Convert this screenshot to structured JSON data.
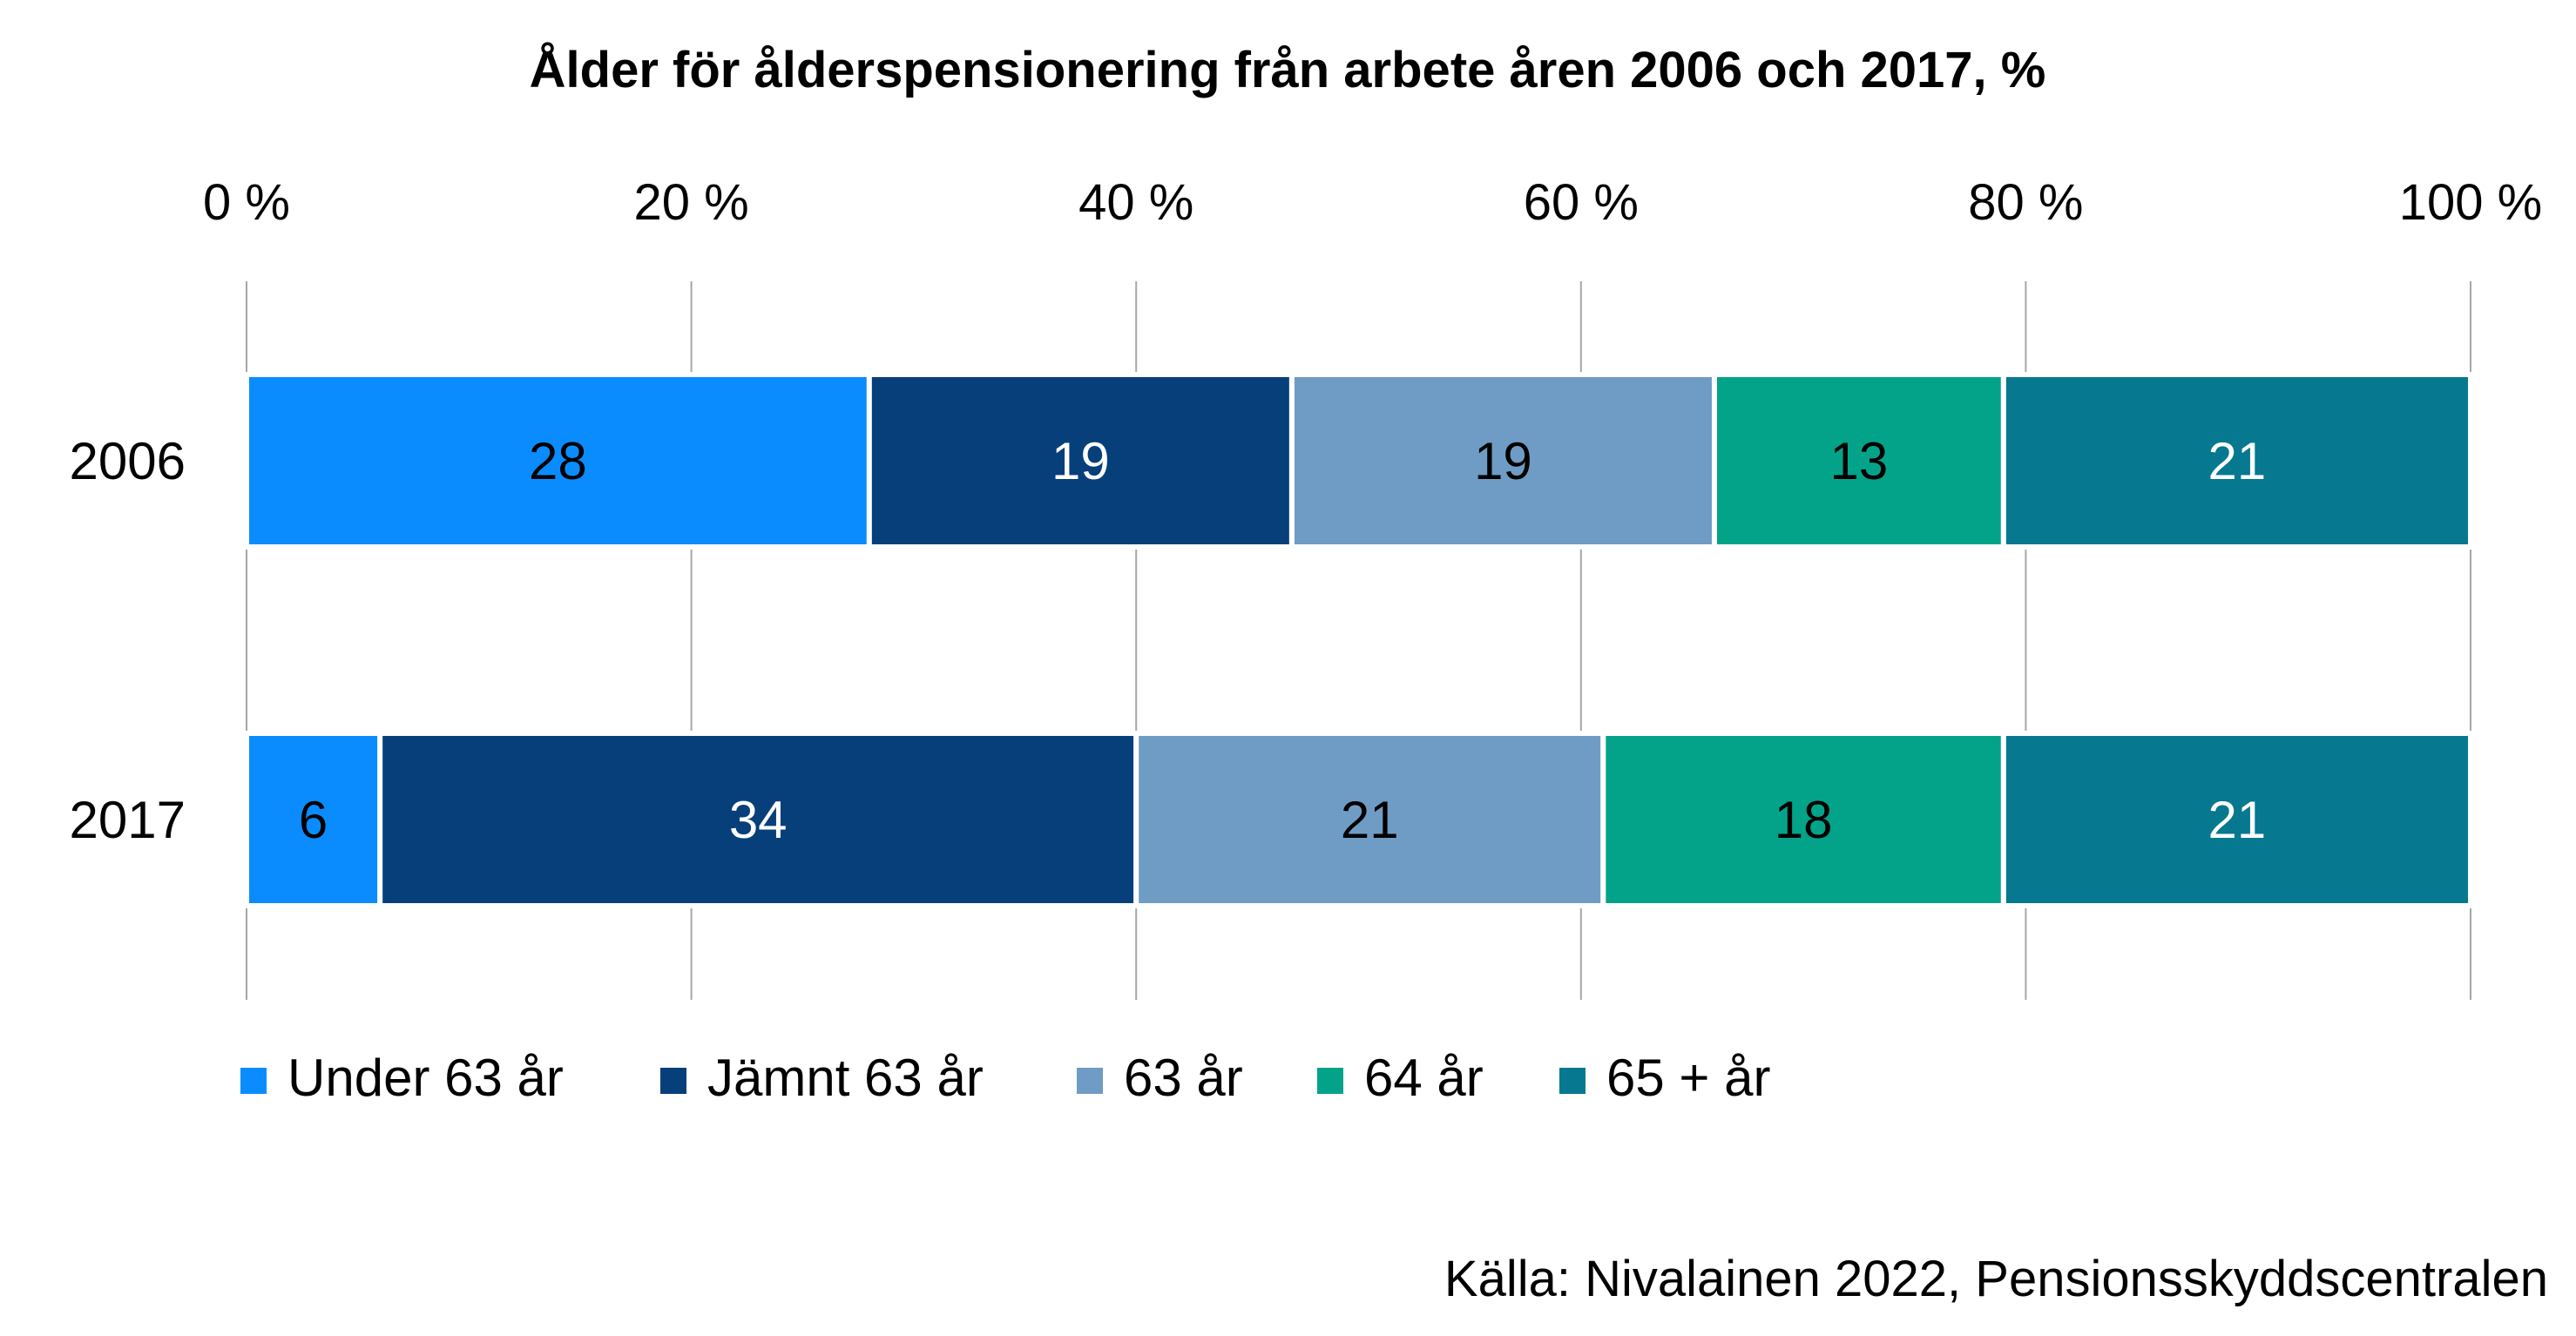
{
  "chart_data": {
    "type": "bar",
    "orientation": "horizontal",
    "stacked": "percent",
    "title": "Ålder för ålderspensionering från arbete åren 2006 och 2017, %",
    "categories": [
      "2006",
      "2017"
    ],
    "x_ticks": [
      "0 %",
      "20 %",
      "40 %",
      "60 %",
      "80 %",
      "100 %"
    ],
    "xlim": [
      0,
      100
    ],
    "grid": "vertical",
    "legend_position": "bottom",
    "series": [
      {
        "name": "Under 63 år",
        "color": "#0a8cff",
        "label_color": "#000000",
        "values": [
          28,
          6
        ]
      },
      {
        "name": "Jämnt 63 år",
        "color": "#073f7a",
        "label_color": "#ffffff",
        "values": [
          19,
          34
        ]
      },
      {
        "name": "63 år",
        "color": "#6f9cc4",
        "label_color": "#000000",
        "values": [
          19,
          21
        ]
      },
      {
        "name": "64 år",
        "color": "#03a389",
        "label_color": "#000000",
        "values": [
          13,
          18
        ]
      },
      {
        "name": "65 + år",
        "color": "#06788f",
        "label_color": "#ffffff",
        "values": [
          21,
          21
        ]
      }
    ],
    "source": "Källa: Nivalainen 2022, Pensionsskyddscentralen"
  }
}
